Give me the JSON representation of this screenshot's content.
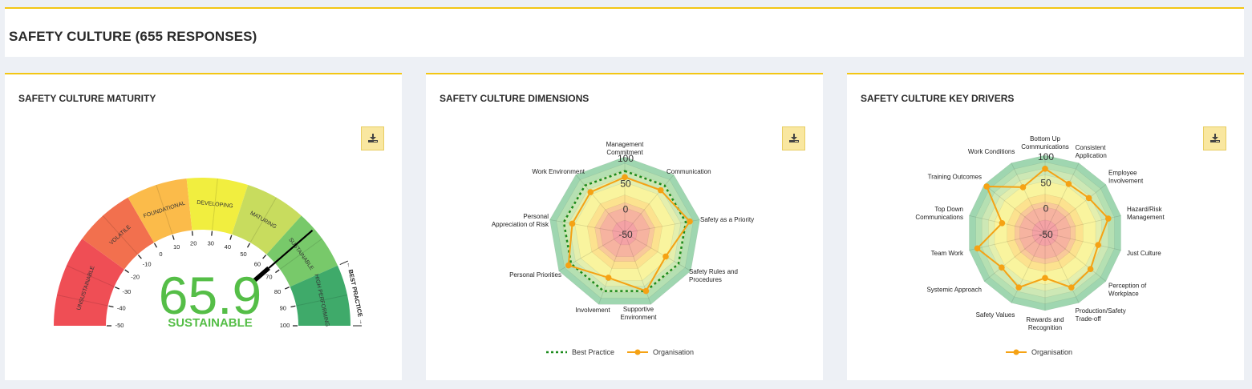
{
  "page": {
    "title": "SAFETY CULTURE (655 RESPONSES)"
  },
  "colors": {
    "accent_border": "#f3c614",
    "download_bg": "#f9e7a0",
    "organisation": "#f5a214",
    "best_practice": "#1a8a1a",
    "score": "#55be47"
  },
  "cards": [
    {
      "title": "SAFETY CULTURE MATURITY",
      "download_icon": "download-icon"
    },
    {
      "title": "SAFETY CULTURE DIMENSIONS",
      "download_icon": "download-icon",
      "legend": [
        "Best Practice",
        "Organisation"
      ]
    },
    {
      "title": "SAFETY CULTURE KEY DRIVERS",
      "download_icon": "download-icon",
      "legend": [
        "Organisation"
      ]
    }
  ],
  "chart_data": [
    {
      "type": "gauge",
      "title": "SAFETY CULTURE MATURITY",
      "value": 65.9,
      "value_label": "65.9",
      "category_label": "SUSTAINABLE",
      "range": [
        -50,
        100
      ],
      "ticks": [
        -50,
        -40,
        -30,
        -20,
        -10,
        0,
        10,
        20,
        30,
        40,
        50,
        60,
        70,
        80,
        90,
        100
      ],
      "bands": [
        {
          "label": "UNSUSTAINABLE",
          "from": -50,
          "to": -20,
          "color": "#ef4e55"
        },
        {
          "label": "VOLATILE",
          "from": -20,
          "to": 0,
          "color": "#f2704e"
        },
        {
          "label": "FOUNDATIONAL",
          "from": 0,
          "to": 20,
          "color": "#fbbb4a"
        },
        {
          "label": "DEVELOPING",
          "from": 20,
          "to": 40,
          "color": "#f1ee3f"
        },
        {
          "label": "MATURING",
          "from": 40,
          "to": 60,
          "color": "#c8dc5e"
        },
        {
          "label": "SUSTAINABLE",
          "from": 60,
          "to": 80,
          "color": "#78c96a"
        },
        {
          "label": "HIGH PERFORMING",
          "from": 80,
          "to": 100,
          "color": "#3faa6a"
        }
      ],
      "annotation": {
        "label": "← BEST PRACTICE →",
        "from": 80,
        "to": 100
      }
    },
    {
      "type": "radar",
      "title": "SAFETY CULTURE DIMENSIONS",
      "range": [
        -50,
        100
      ],
      "ticks": [
        -50,
        0,
        50,
        100
      ],
      "categories": [
        "Management Commitment",
        "Communication",
        "Safety as a Priority",
        "Safety Rules and Procedures",
        "Supportive Environment",
        "Involvement",
        "Personal Priorities",
        "Personal Appreciation of Risk",
        "Work Environment"
      ],
      "series": [
        {
          "name": "Best Practice",
          "values": [
            72,
            72,
            72,
            72,
            72,
            72,
            72,
            72,
            72
          ],
          "style": "dotted"
        },
        {
          "name": "Organisation",
          "values": [
            60,
            60,
            80,
            43,
            72,
            44,
            78,
            55,
            55
          ],
          "style": "line-marker"
        }
      ],
      "legend_position": "bottom"
    },
    {
      "type": "radar",
      "title": "SAFETY CULTURE KEY DRIVERS",
      "range": [
        -50,
        100
      ],
      "ticks": [
        -50,
        0,
        50,
        100
      ],
      "categories": [
        "Bottom Up Communications",
        "Consistent Application",
        "Employee Involvement",
        "Hazard/Risk Management",
        "Just Culture",
        "Perception of Workplace",
        "Production/Safety Trade-off",
        "Rewards and Recognition",
        "Safety Values",
        "Systemic Approach",
        "Team Work",
        "Top Down Communications",
        "Training Outcomes",
        "Work Conditions"
      ],
      "series": [
        {
          "name": "Organisation",
          "values": [
            74,
            55,
            58,
            75,
            55,
            62,
            67,
            37,
            67,
            57,
            84,
            35,
            94,
            48
          ],
          "style": "line-marker"
        }
      ],
      "legend_position": "bottom"
    }
  ]
}
